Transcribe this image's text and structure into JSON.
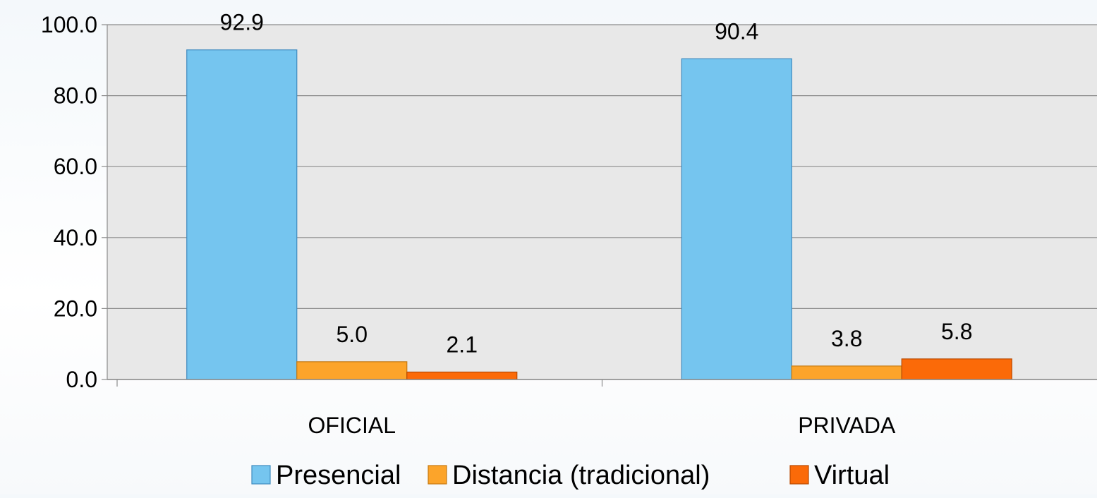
{
  "chart_data": {
    "type": "bar",
    "categories": [
      "OFICIAL",
      "PRIVADA"
    ],
    "series": [
      {
        "name": "Presencial",
        "values": [
          92.9,
          90.4
        ],
        "color": "#75C5EF",
        "border": "#3F8BBF"
      },
      {
        "name": "Distancia (tradicional)",
        "values": [
          5.0,
          3.8
        ],
        "color": "#FCA42A",
        "border": "#C67A12"
      },
      {
        "name": "Virtual",
        "values": [
          2.1,
          5.8
        ],
        "color": "#FB6A08",
        "border": "#B84A02"
      }
    ],
    "data_labels": [
      [
        "92.9",
        "90.4"
      ],
      [
        "5.0",
        "3.8"
      ],
      [
        "2.1",
        "5.8"
      ]
    ],
    "y_ticks": [
      "0.0",
      "20.0",
      "40.0",
      "60.0",
      "80.0",
      "100.0"
    ],
    "ylim": [
      0,
      100
    ],
    "grid": true,
    "legend_position": "bottom",
    "plot_background": "#E8E8E8"
  }
}
